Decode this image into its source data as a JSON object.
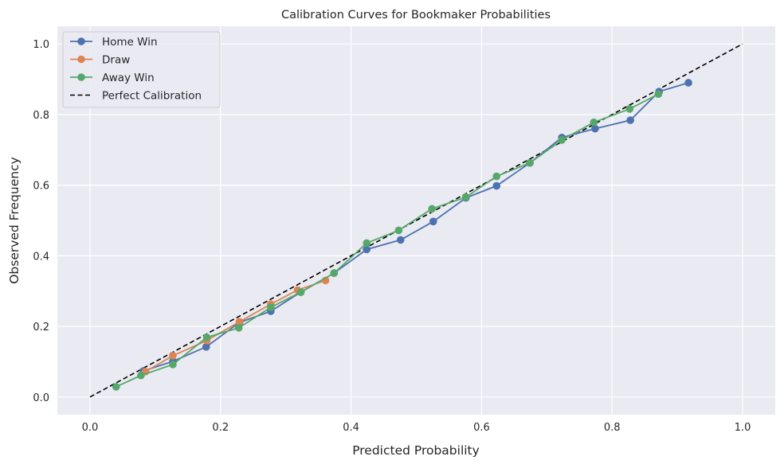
{
  "chart_data": {
    "type": "line",
    "title": "Calibration Curves for Bookmaker Probabilities",
    "xlabel": "Predicted Probability",
    "ylabel": "Observed Frequency",
    "xlim": [
      -0.05,
      1.05
    ],
    "ylim": [
      -0.05,
      1.05
    ],
    "xticks": [
      "0.0",
      "0.2",
      "0.4",
      "0.6",
      "0.8",
      "1.0"
    ],
    "yticks": [
      "0.0",
      "0.2",
      "0.4",
      "0.6",
      "0.8",
      "1.0"
    ],
    "grid": true,
    "legend_position": "top-left",
    "series": [
      {
        "name": "Home Win",
        "color": "#4c72b0",
        "style": "line-marker",
        "x": [
          0.082,
          0.127,
          0.178,
          0.229,
          0.277,
          0.323,
          0.374,
          0.424,
          0.476,
          0.526,
          0.576,
          0.623,
          0.674,
          0.723,
          0.774,
          0.828,
          0.872,
          0.917
        ],
        "y": [
          0.074,
          0.101,
          0.142,
          0.211,
          0.243,
          0.297,
          0.351,
          0.418,
          0.445,
          0.497,
          0.564,
          0.598,
          0.663,
          0.735,
          0.76,
          0.784,
          0.865,
          0.89
        ]
      },
      {
        "name": "Draw",
        "color": "#dd8452",
        "style": "line-marker",
        "x": [
          0.085,
          0.127,
          0.179,
          0.229,
          0.277,
          0.318,
          0.361
        ],
        "y": [
          0.072,
          0.117,
          0.16,
          0.213,
          0.263,
          0.303,
          0.33
        ]
      },
      {
        "name": "Away Win",
        "color": "#55a868",
        "style": "line-marker",
        "x": [
          0.04,
          0.078,
          0.127,
          0.179,
          0.228,
          0.277,
          0.323,
          0.374,
          0.424,
          0.473,
          0.524,
          0.576,
          0.623,
          0.674,
          0.723,
          0.772,
          0.827,
          0.871
        ],
        "y": [
          0.029,
          0.061,
          0.092,
          0.169,
          0.196,
          0.254,
          0.297,
          0.351,
          0.436,
          0.472,
          0.533,
          0.566,
          0.625,
          0.663,
          0.728,
          0.778,
          0.816,
          0.858
        ]
      },
      {
        "name": "Perfect Calibration",
        "color": "#000000",
        "style": "dashed",
        "x": [
          0,
          1
        ],
        "y": [
          0,
          1
        ]
      }
    ]
  }
}
